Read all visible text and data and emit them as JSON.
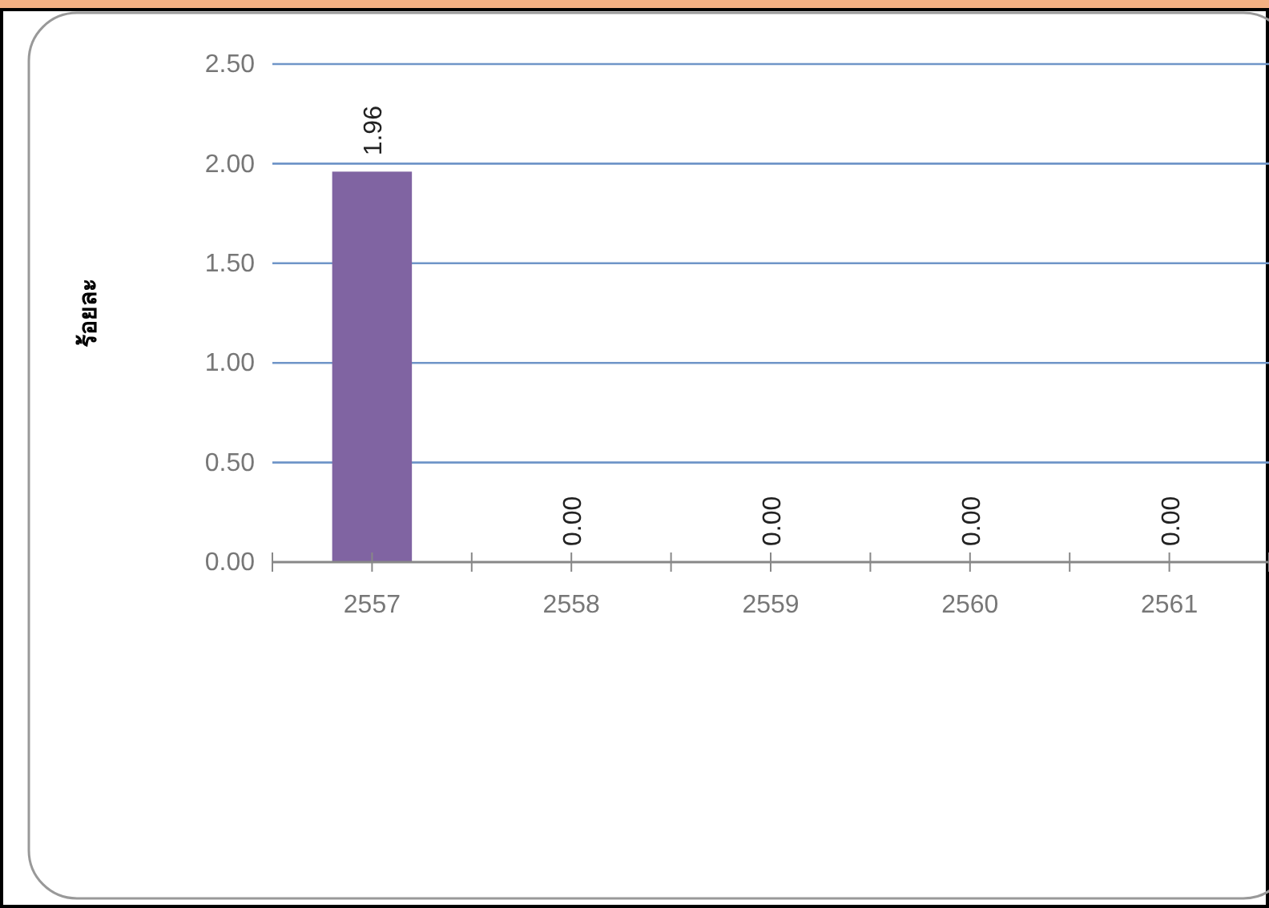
{
  "chart_data": {
    "type": "bar",
    "ylabel": "ร้อยละ",
    "categories": [
      "2557",
      "2558",
      "2559",
      "2560",
      "2561"
    ],
    "values": [
      1.96,
      0,
      0,
      0,
      0
    ],
    "color": "#8064a2",
    "ylim": [
      0,
      2.5
    ],
    "yticks": [
      {
        "value": 0,
        "label": "0.00"
      },
      {
        "value": 0.5,
        "label": "0.50"
      },
      {
        "value": 1,
        "label": "1.00"
      },
      {
        "value": 1.5,
        "label": "1.50"
      },
      {
        "value": 2,
        "label": "2.00"
      },
      {
        "value": 2.5,
        "label": "2.50"
      }
    ],
    "grid": "y",
    "value_labels": [
      "1.96",
      "0.00",
      "0.00",
      "0.00",
      "0.00"
    ]
  }
}
